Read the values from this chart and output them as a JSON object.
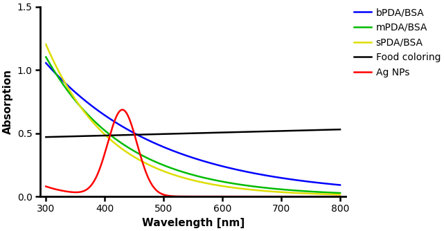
{
  "title": "",
  "xlabel": "Wavelength [nm]",
  "ylabel": "Absorption",
  "xlim": [
    290,
    810
  ],
  "ylim": [
    0.0,
    1.5
  ],
  "yticks": [
    0.0,
    0.5,
    1.0,
    1.5
  ],
  "xticks": [
    300,
    400,
    500,
    600,
    700,
    800
  ],
  "legend": [
    {
      "label": "bPDA/BSA",
      "color": "#0000FF"
    },
    {
      "label": "mPDA/BSA",
      "color": "#00BB00"
    },
    {
      "label": "sPDA/BSA",
      "color": "#DDDD00"
    },
    {
      "label": "Food coloring",
      "color": "#000000"
    },
    {
      "label": "Ag NPs",
      "color": "#FF0000"
    }
  ],
  "line_width": 1.8,
  "figsize": [
    6.41,
    3.34
  ],
  "dpi": 100
}
